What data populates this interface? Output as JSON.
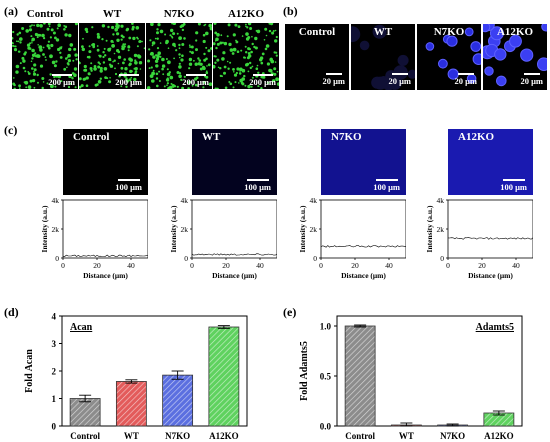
{
  "panel_a": {
    "label": "(a)",
    "columns": [
      "Control",
      "WT",
      "N7KO",
      "A12KO"
    ],
    "scale_bar": "200 μm"
  },
  "panel_b": {
    "label": "(b)",
    "columns": [
      "Control",
      "WT",
      "N7KO",
      "A12KO"
    ],
    "scale_bar": "20 μm"
  },
  "panel_c": {
    "label": "(c)",
    "images": [
      "Control",
      "WT",
      "N7KO",
      "A12KO"
    ],
    "scale_bar": "100 μm",
    "ylabel": "Intensity (a.u.)",
    "xlabel": "Distance (μm)",
    "yticks": [
      "0",
      "2k",
      "4k"
    ],
    "xticks": [
      "0",
      "20",
      "40"
    ]
  },
  "panel_d": {
    "label": "(d)"
  },
  "panel_e": {
    "label": "(e)"
  },
  "chart_data": [
    {
      "type": "line",
      "panel": "c",
      "xlabel": "Distance (μm)",
      "ylabel": "Intensity (a.u.)",
      "xlim": [
        0,
        50
      ],
      "ylim": [
        0,
        4000
      ],
      "series": [
        {
          "name": "Control",
          "y": 150
        },
        {
          "name": "WT",
          "y": 250
        },
        {
          "name": "N7KO",
          "y": 800
        },
        {
          "name": "A12KO",
          "y": 1350
        }
      ]
    },
    {
      "type": "bar",
      "panel": "d",
      "title": "Acan",
      "ylabel": "Fold Acan",
      "categories": [
        "Control",
        "WT",
        "N7KO",
        "A12KO"
      ],
      "values": [
        1.0,
        1.62,
        1.85,
        3.6
      ],
      "errors": [
        0.12,
        0.06,
        0.15,
        0.05
      ],
      "ylim": [
        0,
        4
      ],
      "yticks": [
        0,
        1,
        2,
        3,
        4
      ],
      "colors": [
        "#8c8c8c",
        "#e35b5b",
        "#5b6fe0",
        "#5fd25f"
      ]
    },
    {
      "type": "bar",
      "panel": "e",
      "title": "Adamts5",
      "ylabel": "Fold Adamts5",
      "categories": [
        "Control",
        "WT",
        "N7KO",
        "A12KO"
      ],
      "values": [
        1.0,
        0.01,
        0.01,
        0.13
      ],
      "errors": [
        0.01,
        0.02,
        0.01,
        0.02
      ],
      "ylim": [
        0,
        1.1
      ],
      "yticks": [
        0.0,
        0.5,
        1.0
      ],
      "colors": [
        "#8c8c8c",
        "#e35b5b",
        "#5b6fe0",
        "#5fd25f"
      ]
    }
  ]
}
